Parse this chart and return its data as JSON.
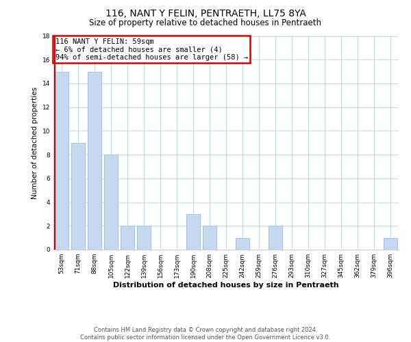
{
  "title": "116, NANT Y FELIN, PENTRAETH, LL75 8YA",
  "subtitle": "Size of property relative to detached houses in Pentraeth",
  "xlabel": "Distribution of detached houses by size in Pentraeth",
  "ylabel": "Number of detached properties",
  "bin_labels": [
    "53sqm",
    "71sqm",
    "88sqm",
    "105sqm",
    "122sqm",
    "139sqm",
    "156sqm",
    "173sqm",
    "190sqm",
    "208sqm",
    "225sqm",
    "242sqm",
    "259sqm",
    "276sqm",
    "293sqm",
    "310sqm",
    "327sqm",
    "345sqm",
    "362sqm",
    "379sqm",
    "396sqm"
  ],
  "bar_heights": [
    15,
    9,
    15,
    8,
    2,
    2,
    0,
    0,
    3,
    2,
    0,
    1,
    0,
    2,
    0,
    0,
    0,
    0,
    0,
    0,
    1
  ],
  "bar_color": "#c5d8f0",
  "bar_edge_color": "#a0bcd8",
  "red_line_color": "#cc0000",
  "annotation_title": "116 NANT Y FELIN: 59sqm",
  "annotation_line2": "← 6% of detached houses are smaller (4)",
  "annotation_line3": "94% of semi-detached houses are larger (58) →",
  "annotation_box_facecolor": "#ffffff",
  "annotation_box_edgecolor": "#cc0000",
  "ylim": [
    0,
    18
  ],
  "yticks": [
    0,
    2,
    4,
    6,
    8,
    10,
    12,
    14,
    16,
    18
  ],
  "grid_color": "#c8d8e8",
  "footer_line1": "Contains HM Land Registry data © Crown copyright and database right 2024.",
  "footer_line2": "Contains public sector information licensed under the Open Government Licence v3.0.",
  "title_fontsize": 10,
  "subtitle_fontsize": 8.5,
  "xlabel_fontsize": 8,
  "ylabel_fontsize": 7.5,
  "tick_fontsize": 6.5,
  "annotation_fontsize": 7.5,
  "footer_fontsize": 6
}
